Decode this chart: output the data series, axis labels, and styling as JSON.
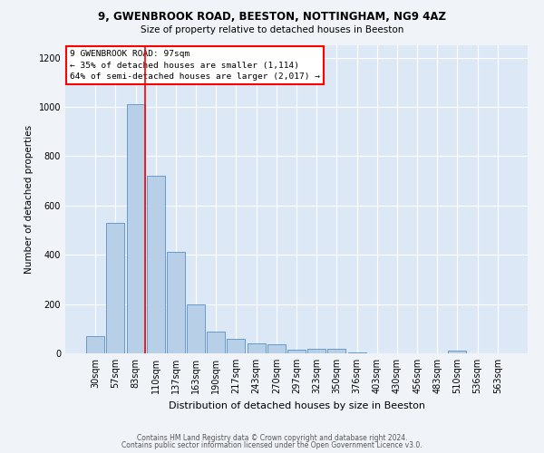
{
  "title1": "9, GWENBROOK ROAD, BEESTON, NOTTINGHAM, NG9 4AZ",
  "title2": "Size of property relative to detached houses in Beeston",
  "xlabel": "Distribution of detached houses by size in Beeston",
  "ylabel": "Number of detached properties",
  "categories": [
    "30sqm",
    "57sqm",
    "83sqm",
    "110sqm",
    "137sqm",
    "163sqm",
    "190sqm",
    "217sqm",
    "243sqm",
    "270sqm",
    "297sqm",
    "323sqm",
    "350sqm",
    "376sqm",
    "403sqm",
    "430sqm",
    "456sqm",
    "483sqm",
    "510sqm",
    "536sqm",
    "563sqm"
  ],
  "values": [
    70,
    530,
    1010,
    720,
    410,
    200,
    90,
    60,
    40,
    35,
    15,
    20,
    20,
    5,
    0,
    0,
    0,
    0,
    10,
    0,
    0
  ],
  "bar_color": "#b8cfe8",
  "bar_edge_color": "#6699cc",
  "fig_background_color": "#f0f4f8",
  "ax_background_color": "#dce8f5",
  "grid_color": "#ffffff",
  "red_line_index": 2,
  "annotation_title": "9 GWENBROOK ROAD: 97sqm",
  "annotation_line1": "← 35% of detached houses are smaller (1,114)",
  "annotation_line2": "64% of semi-detached houses are larger (2,017) →",
  "footer1": "Contains HM Land Registry data © Crown copyright and database right 2024.",
  "footer2": "Contains public sector information licensed under the Open Government Licence v3.0.",
  "ylim": [
    0,
    1250
  ],
  "yticks": [
    0,
    200,
    400,
    600,
    800,
    1000,
    1200
  ]
}
